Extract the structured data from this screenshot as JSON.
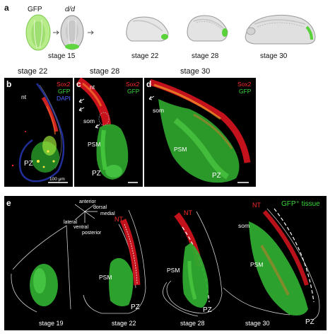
{
  "panel_a": {
    "label": "a",
    "gfp_label": "GFP",
    "dd_label": "d/d",
    "stages": [
      "stage 15",
      "stage 22",
      "stage 28",
      "stage 30"
    ]
  },
  "panels_bcd": {
    "b": {
      "letter": "b",
      "stage": "stage 22",
      "legend": [
        "Sox2",
        "GFP",
        "DAPI"
      ],
      "nt": "nt",
      "pz": "PZ",
      "scale": "100 μm"
    },
    "c": {
      "letter": "c",
      "stage": "stage 28",
      "legend": [
        "Sox2",
        "GFP"
      ],
      "nt": "nt",
      "som": "som",
      "psm": "PSM",
      "pz": "PZ"
    },
    "d": {
      "letter": "d",
      "stage": "stage 30",
      "legend": [
        "Sox2",
        "GFP"
      ],
      "som": "som",
      "psm": "PSM",
      "pz": "PZ"
    }
  },
  "panel_e": {
    "label": "e",
    "legend": "GFP⁺ tissue",
    "axes": [
      "anterior",
      "dorsal",
      "medial",
      "lateral",
      "ventral",
      "posterior"
    ],
    "nt": "NT",
    "psm": "PSM",
    "pz": "PZ",
    "som": "som",
    "stages": [
      "stage 19",
      "stage 22",
      "stage 28",
      "stage 30"
    ]
  },
  "colors": {
    "sox2": "#ff2a2a",
    "gfp": "#38d838",
    "dapi": "#4a64ff",
    "background": "#000000"
  }
}
